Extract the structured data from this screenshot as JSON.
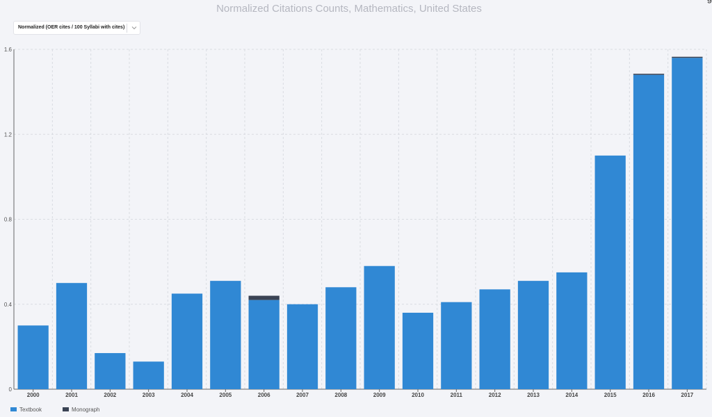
{
  "title": "Normalized Citations Counts, Mathematics, United States",
  "dropdown": {
    "selected": "Normalized (OER cites / 100 Syllabi with cites)",
    "icon": "chevron-down-icon"
  },
  "colors": {
    "textbook": "#3088d4",
    "monograph": "#3a4354",
    "grid": "#d9dbe1",
    "axis": "#555555"
  },
  "chart_data": {
    "type": "bar",
    "stacked": true,
    "title": "Normalized Citations Counts, Mathematics, United States",
    "xlabel": "",
    "ylabel": "",
    "categories": [
      "2000",
      "2001",
      "2002",
      "2003",
      "2004",
      "2005",
      "2006",
      "2007",
      "2008",
      "2009",
      "2010",
      "2011",
      "2012",
      "2013",
      "2014",
      "2015",
      "2016",
      "2017"
    ],
    "series": [
      {
        "name": "Textbook",
        "color": "#3088d4",
        "values": [
          0.3,
          0.5,
          0.17,
          0.13,
          0.45,
          0.51,
          0.42,
          0.4,
          0.48,
          0.58,
          0.36,
          0.41,
          0.47,
          0.51,
          0.55,
          1.1,
          1.48,
          1.56
        ]
      },
      {
        "name": "Monograph",
        "color": "#3a4354",
        "values": [
          0,
          0,
          0,
          0,
          0,
          0,
          0.02,
          0,
          0,
          0,
          0,
          0,
          0,
          0,
          0,
          0,
          0.005,
          0.005
        ]
      }
    ],
    "ylim": [
      0,
      1.6
    ],
    "yticks": [
      0,
      0.4,
      0.8,
      1.2,
      1.6
    ],
    "ytick_labels": [
      "0",
      "0.4",
      "0.8",
      "1.2",
      "1.6"
    ],
    "grid": true,
    "legend_position": "bottom-left"
  }
}
